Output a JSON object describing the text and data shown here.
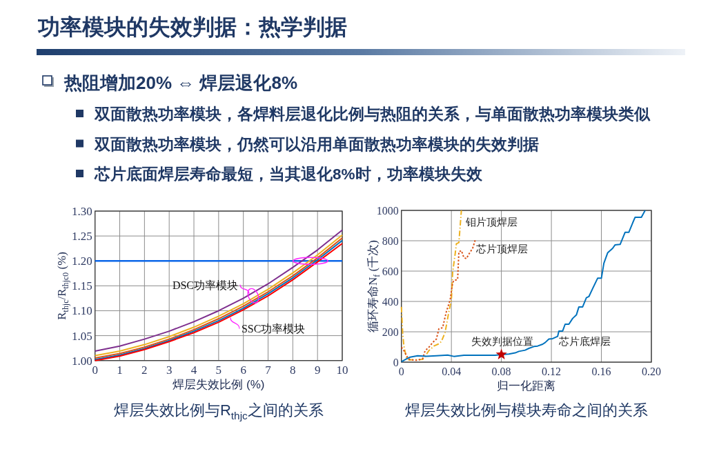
{
  "chart_data": [
    {
      "type": "other",
      "title": "功率模块的失效判据：热学判据",
      "annotations": [
        "热阻增加20% ⇔ 焊层退化8%",
        "双面散热功率模块，各焊料层退化比例与热阻的关系，与单面散热功率模块类似",
        "双面散热功率模块，仍然可以沿用单面散热功率模块的失效判据",
        "芯片底面焊层寿命最短，当其退化8%时，功率模块失效"
      ]
    },
    {
      "type": "line",
      "title": "焊层失效比例与R$_{thjc}$之间的关系",
      "xlabel": "焊层失效比例 (%)",
      "ylabel": "R$_{thjc}$/R$_{thjc0}$ (%)",
      "x": [
        0,
        1,
        2,
        3,
        4,
        5,
        6,
        7,
        8,
        9,
        10
      ],
      "series": [
        {
          "color": "#7e2f8e",
          "values": [
            1.019,
            1.029,
            1.043,
            1.059,
            1.078,
            1.1,
            1.125,
            1.154,
            1.187,
            1.222,
            1.262
          ]
        },
        {
          "color": "#edb120",
          "values": [
            1.01,
            1.019,
            1.032,
            1.048,
            1.067,
            1.089,
            1.114,
            1.143,
            1.176,
            1.212,
            1.252
          ]
        },
        {
          "color": "#d95319",
          "values": [
            1.005,
            1.014,
            1.027,
            1.043,
            1.062,
            1.084,
            1.109,
            1.138,
            1.17,
            1.206,
            1.246
          ]
        },
        {
          "color": "#0072bd",
          "values": [
            1.002,
            1.011,
            1.024,
            1.04,
            1.059,
            1.08,
            1.105,
            1.134,
            1.166,
            1.202,
            1.241
          ]
        },
        {
          "color": "#ff0000",
          "values": [
            1.0,
            1.009,
            1.022,
            1.038,
            1.056,
            1.077,
            1.102,
            1.13,
            1.162,
            1.198,
            1.235
          ]
        }
      ],
      "xlim": [
        0,
        10
      ],
      "ylim": [
        1,
        1.3
      ],
      "xticks": [
        0,
        1,
        2,
        3,
        4,
        5,
        6,
        7,
        8,
        9,
        10
      ],
      "yticks": [
        {
          "value": 1,
          "label": "1.00"
        },
        {
          "value": 1.05,
          "label": "1.05"
        },
        {
          "value": 1.1,
          "label": "1.10"
        },
        {
          "value": 1.15,
          "label": "1.15"
        },
        {
          "value": 1.2,
          "label": "1.20"
        },
        {
          "value": 1.25,
          "label": "1.25"
        },
        {
          "value": 1.3,
          "label": "1.30"
        }
      ],
      "grid": true,
      "ref_lines": [
        {
          "axis": "y",
          "value": 1.2,
          "color": "#0a66e8"
        }
      ],
      "annotations": [
        {
          "text": "DSC功率模块",
          "x": 6.4,
          "y": 1.13
        },
        {
          "text": "SSC功率模块",
          "x": 5.45,
          "y": 1.089
        }
      ]
    },
    {
      "type": "line",
      "title": "焊层失效比例与模块寿命之间的关系",
      "xlabel": "归一化距离",
      "ylabel": "循环寿命N$_{f}$ (千次)",
      "series": [
        {
          "name": "钼片顶焊层",
          "color": "#edb120",
          "line_style": "dashdot",
          "x": [
            0,
            0.001,
            0.002,
            0.004,
            0.006,
            0.017,
            0.019,
            0.022,
            0.026,
            0.03,
            0.032,
            0.035,
            0.038,
            0.04,
            0.041,
            0.043,
            0.044,
            0.046,
            0.047,
            0.048
          ],
          "values": [
            364,
            197,
            106,
            30,
            15,
            18,
            38,
            76,
            106,
            121,
            136,
            197,
            333,
            409,
            591,
            712,
            780,
            788,
            894,
            1000
          ]
        },
        {
          "name": "芯片顶焊层",
          "color": "#d95319",
          "line_style": "dotted",
          "x": [
            0,
            0.002,
            0.005,
            0.007,
            0.013,
            0.017,
            0.019,
            0.022,
            0.025,
            0.028,
            0.03,
            0.033,
            0.036,
            0.039,
            0.041,
            0.042,
            0.045,
            0.046,
            0.048,
            0.05,
            0.052,
            0.054,
            0.057,
            0.059
          ],
          "values": [
            98,
            76,
            30,
            15,
            12,
            23,
            76,
            98,
            129,
            152,
            220,
            227,
            333,
            409,
            523,
            538,
            545,
            727,
            735,
            689,
            682,
            712,
            750,
            803
          ]
        },
        {
          "name": "芯片底焊层",
          "color": "#0072bd",
          "x": [
            0,
            0.004,
            0.007,
            0.013,
            0.02,
            0.028,
            0.037,
            0.042,
            0.05,
            0.057,
            0.068,
            0.075,
            0.08,
            0.086,
            0.091,
            0.094,
            0.099,
            0.102,
            0.106,
            0.109,
            0.113,
            0.115,
            0.118,
            0.121,
            0.125,
            0.126,
            0.129,
            0.131,
            0.134,
            0.137,
            0.14,
            0.142,
            0.145,
            0.148,
            0.15,
            0.153,
            0.157,
            0.16,
            0.162,
            0.165,
            0.169,
            0.171,
            0.175,
            0.179,
            0.182,
            0.185,
            0.187,
            0.192,
            0.195
          ],
          "values": [
            3,
            21,
            33,
            42,
            39,
            42,
            47,
            38,
            45,
            45,
            45,
            45,
            50,
            53,
            61,
            71,
            79,
            91,
            103,
            106,
            118,
            129,
            152,
            155,
            170,
            205,
            205,
            250,
            250,
            288,
            311,
            364,
            364,
            424,
            432,
            485,
            553,
            553,
            652,
            720,
            750,
            773,
            776,
            856,
            856,
            917,
            955,
            955,
            1000
          ]
        },
        {
          "name": "失效判据位置",
          "type": "scatter",
          "marker": "star",
          "color": "#c00000",
          "x": [
            0.08
          ],
          "values": [
            50
          ]
        }
      ],
      "xlim": [
        0,
        0.2
      ],
      "ylim": [
        0,
        1000
      ],
      "xticks": [
        0,
        0.04,
        0.08,
        0.12,
        0.16,
        {
          "value": 0.2,
          "label": "0.20"
        }
      ],
      "yticks": [
        0,
        200,
        400,
        600,
        800,
        1000
      ],
      "grid": true
    }
  ]
}
